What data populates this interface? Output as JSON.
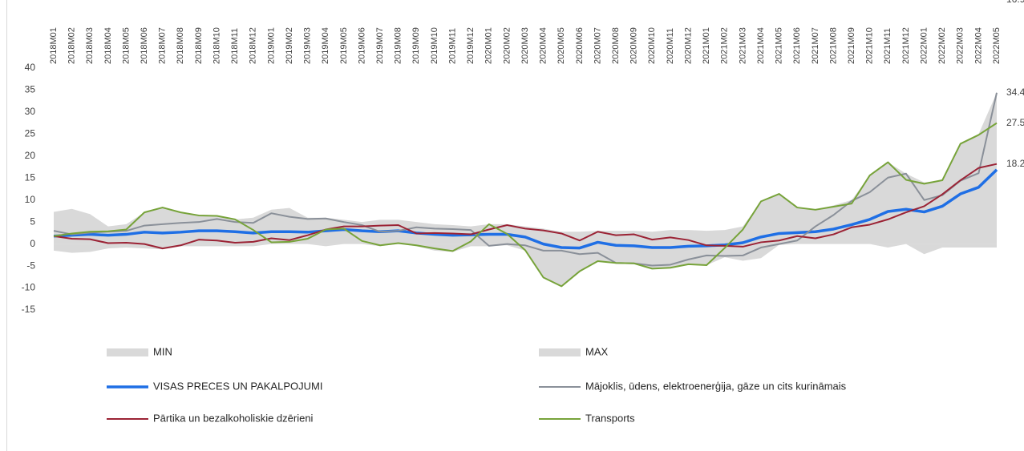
{
  "chart_data": {
    "type": "line",
    "categories": [
      "2018M01",
      "2018M02",
      "2018M03",
      "2018M04",
      "2018M05",
      "2018M06",
      "2018M07",
      "2018M08",
      "2018M09",
      "2018M10",
      "2018M11",
      "2018M12",
      "2019M01",
      "2019M02",
      "2019M03",
      "2019M04",
      "2019M05",
      "2019M06",
      "2019M07",
      "2019M08",
      "2019M09",
      "2019M10",
      "2019M11",
      "2019M12",
      "2020M01",
      "2020M02",
      "2020M03",
      "2020M04",
      "2020M05",
      "2020M06",
      "2020M07",
      "2020M08",
      "2020M09",
      "2020M10",
      "2020M11",
      "2020M12",
      "2021M01",
      "2021M02",
      "2021M03",
      "2021M04",
      "2021M05",
      "2021M06",
      "2021M07",
      "2021M08",
      "2021M09",
      "2021M10",
      "2021M11",
      "2021M12",
      "2022M01",
      "2022M02",
      "2022M03",
      "2022M04",
      "2022M05"
    ],
    "series": [
      {
        "name": "MIN",
        "style": "area",
        "color": "#d9d9d9",
        "values": [
          -1.5,
          -2,
          -1.8,
          -1,
          -0.8,
          -1,
          -1.2,
          -0.5,
          -0.5,
          -0.5,
          -0.5,
          -0.5,
          0,
          0,
          0,
          -0.5,
          0,
          0,
          -0.5,
          0,
          -0.5,
          -1.5,
          -1.8,
          -0.5,
          -0.5,
          -0.3,
          -1.5,
          -7.6,
          -9.6,
          -6.2,
          -4,
          -4.3,
          -4.5,
          -5.6,
          -5.5,
          -4.6,
          -4.8,
          -3,
          -3.8,
          -3.2,
          -0.2,
          0,
          0,
          0,
          0,
          0,
          -0.8,
          0,
          -2.3,
          -0.8,
          -0.8,
          -0.8,
          -0.8
        ]
      },
      {
        "name": "MAX",
        "style": "area",
        "color": "#d9d9d9",
        "values": [
          7.3,
          8,
          6.8,
          4,
          4.5,
          7.2,
          8.3,
          7.2,
          6.5,
          6.4,
          5.6,
          6,
          7.8,
          8.2,
          6,
          6,
          5.5,
          5,
          5.5,
          5.5,
          5,
          4.5,
          4.3,
          4,
          4.5,
          4.5,
          4,
          3.5,
          2.8,
          2.8,
          3,
          3,
          3,
          2.8,
          3.2,
          3.2,
          3,
          3.2,
          4,
          9.7,
          11.4,
          8.3,
          7.8,
          8.8,
          10,
          15.6,
          18.6,
          16,
          14,
          14.5,
          22.8,
          25,
          34.4
        ]
      },
      {
        "name": "VISAS PRECES UN PAKALPOJUMI",
        "style": "line",
        "color": "#1f6fe5",
        "width": 3.5,
        "values": [
          1.8,
          2.0,
          2.2,
          2.0,
          2.2,
          2.7,
          2.5,
          2.7,
          3.0,
          3.0,
          2.8,
          2.5,
          2.8,
          2.8,
          2.7,
          3.0,
          3.3,
          3.0,
          2.8,
          3.0,
          2.5,
          2.2,
          2.0,
          2.1,
          2.2,
          2.2,
          1.6,
          0.0,
          -0.8,
          -0.9,
          0.4,
          -0.3,
          -0.4,
          -0.8,
          -0.8,
          -0.5,
          -0.4,
          -0.2,
          0.3,
          1.6,
          2.4,
          2.6,
          2.8,
          3.4,
          4.4,
          5.6,
          7.4,
          7.9,
          7.3,
          8.6,
          11.4,
          12.9,
          16.9
        ]
      },
      {
        "name": "Mājoklis, ūdens, elektroenerģija, gāze un cits kurināmais",
        "style": "line",
        "color": "#8a9099",
        "width": 2,
        "values": [
          3.0,
          2.2,
          2.6,
          2.8,
          3.0,
          4.2,
          4.5,
          4.8,
          5.0,
          5.7,
          5.0,
          4.8,
          7.0,
          6.2,
          5.7,
          5.8,
          5.0,
          4.3,
          2.8,
          3.0,
          3.8,
          3.5,
          3.4,
          3.2,
          -0.4,
          0.0,
          -0.3,
          -1.5,
          -1.5,
          -2.3,
          -2.0,
          -4.3,
          -4.4,
          -4.9,
          -4.7,
          -3.5,
          -2.6,
          -2.7,
          -2.6,
          -0.8,
          0.0,
          0.8,
          4.0,
          6.6,
          9.8,
          11.8,
          15.1,
          16.0,
          10.0,
          11.1,
          14.4,
          16.1,
          34.4
        ]
      },
      {
        "name": "Pārtika un bezalkoholiskie dzērieni",
        "style": "line",
        "color": "#9b2335",
        "width": 2,
        "values": [
          1.8,
          1.2,
          1.1,
          0.2,
          0.3,
          0.0,
          -1.0,
          -0.3,
          1.0,
          0.8,
          0.3,
          0.5,
          1.3,
          0.9,
          2.0,
          3.3,
          4.0,
          4.0,
          4.2,
          4.3,
          2.4,
          2.5,
          2.4,
          2.2,
          3.3,
          4.3,
          3.5,
          3.1,
          2.4,
          0.8,
          2.8,
          2.0,
          2.2,
          1.0,
          1.5,
          0.9,
          -0.3,
          -0.4,
          -0.6,
          0.4,
          0.8,
          1.8,
          1.3,
          2.2,
          3.8,
          4.4,
          5.6,
          7.2,
          8.6,
          11.3,
          14.5,
          17.3,
          18.2
        ]
      },
      {
        "name": "Transports",
        "style": "line",
        "color": "#77a33a",
        "width": 2,
        "values": [
          1.8,
          2.4,
          2.8,
          2.9,
          3.3,
          7.2,
          8.3,
          7.2,
          6.5,
          6.4,
          5.6,
          3.2,
          0.4,
          0.5,
          1.2,
          3.3,
          3.5,
          0.7,
          -0.3,
          0.2,
          -0.3,
          -1.0,
          -1.6,
          0.6,
          4.5,
          2.3,
          -1.4,
          -7.6,
          -9.6,
          -6.2,
          -3.9,
          -4.3,
          -4.4,
          -5.6,
          -5.4,
          -4.6,
          -4.8,
          -0.9,
          3.3,
          9.7,
          11.4,
          8.3,
          7.8,
          8.5,
          9.2,
          15.6,
          18.6,
          14.6,
          13.7,
          14.5,
          22.8,
          24.8,
          27.5
        ]
      }
    ],
    "ylim": [
      -15,
      40
    ],
    "yticks": [
      -15,
      -10,
      -5,
      0,
      5,
      10,
      15,
      20,
      25,
      30,
      35,
      40
    ],
    "grid": false
  }
}
